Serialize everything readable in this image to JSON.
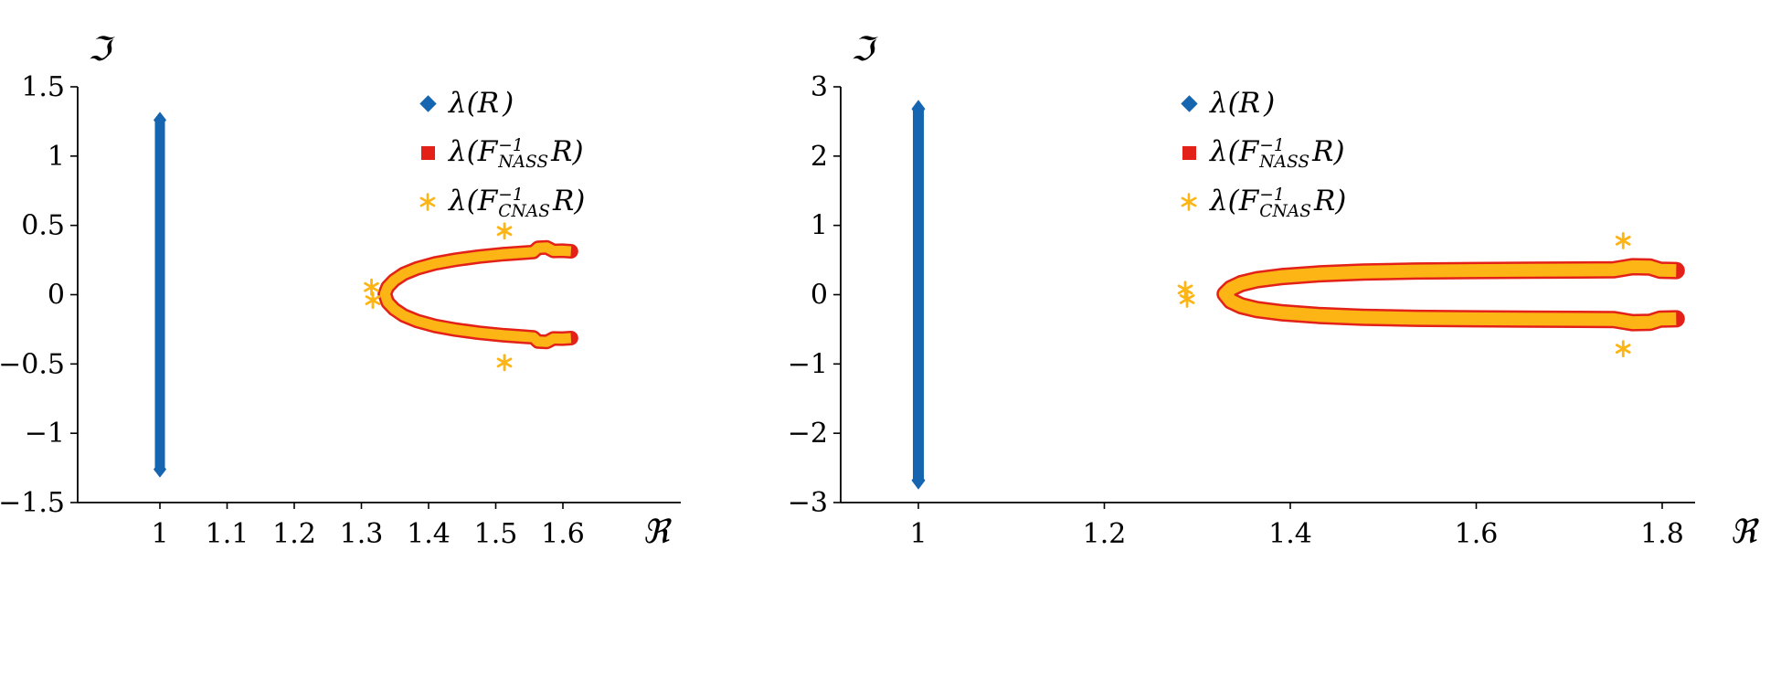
{
  "background": "#ffffff",
  "colors": {
    "blue": "#1665b0",
    "red": "#e32118",
    "yellow": "#fcb515",
    "axis": "#000000"
  },
  "chart_data": [
    {
      "type": "scatter",
      "name": "left-eigenvalue-spectrum",
      "title": "",
      "xlabel": "ℜ",
      "ylabel": "ℑ",
      "xlim": [
        0.88,
        1.78
      ],
      "ylim": [
        -1.5,
        1.5
      ],
      "xticks": [
        1,
        1.1,
        1.2,
        1.3,
        1.4,
        1.5,
        1.6
      ],
      "yticks": [
        -1.5,
        -1,
        -0.5,
        0,
        0.5,
        1,
        1.5
      ],
      "grid": false,
      "legend_position": "upper right, no frame",
      "legend": [
        {
          "marker": "diamond",
          "color": "#1665b0",
          "pre": "λ(",
          "base": "R",
          "sup": "",
          "sub": "",
          "post": ")"
        },
        {
          "marker": "square",
          "color": "#e32118",
          "pre": "λ(",
          "base": "F",
          "sup": "−1",
          "sub": "NASS",
          "post": "R)"
        },
        {
          "marker": "asterisk",
          "color": "#fcb515",
          "pre": "λ(",
          "base": "F",
          "sup": "−1",
          "sub": "CNAS",
          "post": "R)"
        }
      ],
      "series": [
        {
          "name": "lambda(R)",
          "type": "segment",
          "marker": "diamond",
          "color": "#1665b0",
          "x": 1,
          "y_from": -1.26,
          "y_to": 1.26
        },
        {
          "name": "lambda(F^-1_NASS R)",
          "type": "band",
          "marker": "square",
          "stroke": "#e32118",
          "fill": "#fcb515",
          "centerline_upper": [
            [
              1.335,
              0.005
            ],
            [
              1.339,
              0.055
            ],
            [
              1.349,
              0.105
            ],
            [
              1.363,
              0.15
            ],
            [
              1.383,
              0.19
            ],
            [
              1.409,
              0.225
            ],
            [
              1.44,
              0.252
            ],
            [
              1.475,
              0.275
            ],
            [
              1.512,
              0.293
            ],
            [
              1.543,
              0.303
            ],
            [
              1.556,
              0.308
            ],
            [
              1.563,
              0.338
            ],
            [
              1.576,
              0.341
            ],
            [
              1.586,
              0.316
            ],
            [
              1.599,
              0.317
            ],
            [
              1.612,
              0.313
            ]
          ]
        },
        {
          "name": "lambda(F^-1_CNAS R) isolated",
          "type": "points",
          "marker": "asterisk",
          "color": "#fcb515",
          "points": [
            [
              1.315,
              0.055
            ],
            [
              1.317,
              -0.04
            ],
            [
              1.513,
              0.46
            ],
            [
              1.513,
              -0.49
            ]
          ]
        }
      ]
    },
    {
      "type": "scatter",
      "name": "right-eigenvalue-spectrum",
      "title": "",
      "xlabel": "ℜ",
      "ylabel": "ℑ",
      "xlim": [
        0.92,
        1.88
      ],
      "ylim": [
        -3,
        3
      ],
      "xticks": [
        1,
        1.2,
        1.4,
        1.6,
        1.8
      ],
      "yticks": [
        -3,
        -2,
        -1,
        0,
        1,
        2,
        3
      ],
      "grid": false,
      "legend_position": "upper right, no frame",
      "legend": [
        {
          "marker": "diamond",
          "color": "#1665b0",
          "pre": "λ(",
          "base": "R",
          "sup": "",
          "sub": "",
          "post": ")"
        },
        {
          "marker": "square",
          "color": "#e32118",
          "pre": "λ(",
          "base": "F",
          "sup": "−1",
          "sub": "NASS",
          "post": "R)"
        },
        {
          "marker": "asterisk",
          "color": "#fcb515",
          "pre": "λ(",
          "base": "F",
          "sup": "−1",
          "sub": "CNAS",
          "post": "R)"
        }
      ],
      "series": [
        {
          "name": "lambda(R)",
          "type": "segment",
          "marker": "diamond",
          "color": "#1665b0",
          "x": 1,
          "y_from": -2.68,
          "y_to": 2.68
        },
        {
          "name": "lambda(F^-1_NASS R)",
          "type": "band",
          "marker": "square",
          "stroke": "#e32118",
          "fill": "#fcb515",
          "centerline_upper": [
            [
              1.33,
              0.01
            ],
            [
              1.336,
              0.09
            ],
            [
              1.347,
              0.16
            ],
            [
              1.364,
              0.215
            ],
            [
              1.392,
              0.262
            ],
            [
              1.43,
              0.3
            ],
            [
              1.478,
              0.326
            ],
            [
              1.535,
              0.341
            ],
            [
              1.595,
              0.348
            ],
            [
              1.655,
              0.352
            ],
            [
              1.71,
              0.356
            ],
            [
              1.748,
              0.36
            ],
            [
              1.768,
              0.404
            ],
            [
              1.787,
              0.398
            ],
            [
              1.798,
              0.352
            ],
            [
              1.815,
              0.348
            ]
          ]
        },
        {
          "name": "lambda(F^-1_CNAS R) isolated",
          "type": "points",
          "marker": "asterisk",
          "color": "#fcb515",
          "points": [
            [
              1.287,
              0.075
            ],
            [
              1.289,
              -0.065
            ],
            [
              1.758,
              0.78
            ],
            [
              1.758,
              -0.78
            ]
          ]
        }
      ]
    }
  ]
}
